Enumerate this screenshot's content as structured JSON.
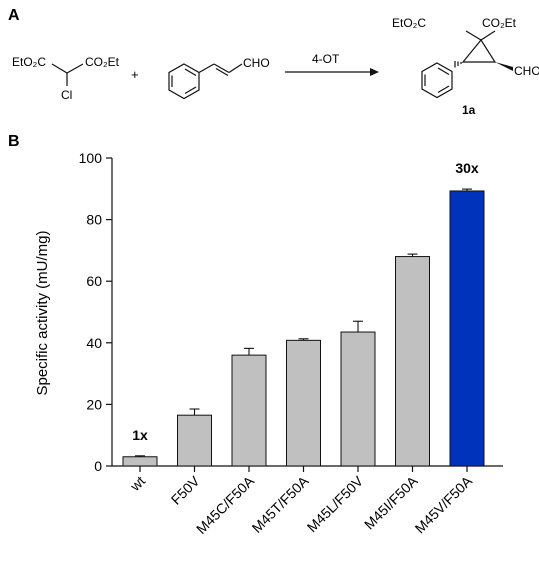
{
  "panel_a": {
    "label": "A",
    "reagent_1": {
      "left_group": "EtO₂C",
      "right_group": "CO₂Et",
      "substituent": "Cl"
    },
    "plus": "+",
    "reagent_2": {
      "group": "CHO"
    },
    "arrow_label": "4-OT",
    "product": {
      "left_group": "EtO₂C",
      "right_group": "CO₂Et",
      "group": "CHO",
      "compound_label": "1a"
    }
  },
  "panel_b": {
    "label": "B"
  },
  "chart_data": {
    "type": "bar",
    "categories": [
      "wt",
      "F50V",
      "M45C/F50A",
      "M45T/F50A",
      "M45L/F50V",
      "M45I/F50A",
      "M45V/F50A"
    ],
    "values": [
      3,
      16.5,
      36,
      40.8,
      43.5,
      68,
      89.3
    ],
    "errors": [
      0.3,
      2.0,
      2.2,
      0.5,
      3.5,
      0.8,
      0.6
    ],
    "bar_colors": [
      "#c0c0c0",
      "#c0c0c0",
      "#c0c0c0",
      "#c0c0c0",
      "#c0c0c0",
      "#c0c0c0",
      "#0033bb"
    ],
    "annotations": [
      {
        "category": "wt",
        "text": "1x"
      },
      {
        "category": "M45V/F50A",
        "text": "30x"
      }
    ],
    "title": "",
    "xlabel": "",
    "ylabel": "Specific activity (mU/mg)",
    "ylim": [
      0,
      100
    ],
    "yticks": [
      0,
      20,
      40,
      60,
      80,
      100
    ],
    "grid": false
  }
}
